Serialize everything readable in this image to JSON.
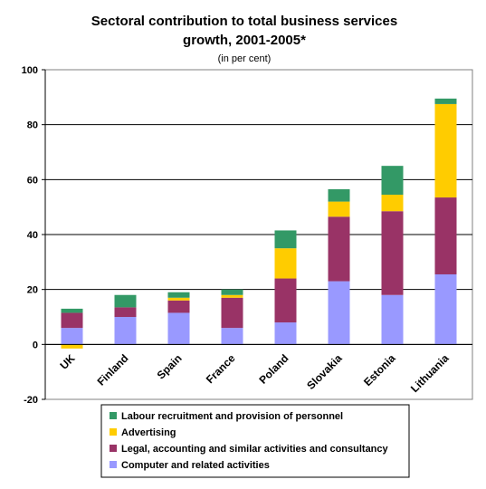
{
  "chart_data": {
    "type": "bar",
    "stacked": true,
    "title_line1": "Sectoral contribution to total business services",
    "title_line2": "growth, 2001-2005*",
    "subtitle": "(in per cent)",
    "xlabel": "",
    "ylabel": "",
    "ylim": [
      -20,
      100
    ],
    "yticks": [
      -20,
      0,
      20,
      40,
      60,
      80,
      100
    ],
    "grid": true,
    "legend_position": "bottom",
    "categories": [
      "UK",
      "Finland",
      "Spain",
      "France",
      "Poland",
      "Slovakia",
      "Estonia",
      "Lithuania"
    ],
    "series": [
      {
        "name": "Computer and related activities",
        "color": "#9999FF",
        "values": [
          6,
          10,
          11.5,
          6,
          8,
          23,
          18,
          25.5
        ]
      },
      {
        "name": "Legal, accounting and similar activities and consultancy",
        "color": "#993366",
        "values": [
          5.5,
          3.5,
          4.5,
          11,
          16,
          23.5,
          30.5,
          28
        ]
      },
      {
        "name": "Advertising",
        "color": "#FFCC00",
        "values": [
          -1.5,
          0,
          1,
          1,
          11,
          5.5,
          6,
          34
        ]
      },
      {
        "name": "Labour recruitment and provision of personnel",
        "color": "#339966",
        "values": [
          1.5,
          4.5,
          2,
          2,
          6.5,
          4.5,
          10.5,
          2
        ]
      }
    ],
    "legend_order": [
      3,
      2,
      1,
      0
    ]
  }
}
